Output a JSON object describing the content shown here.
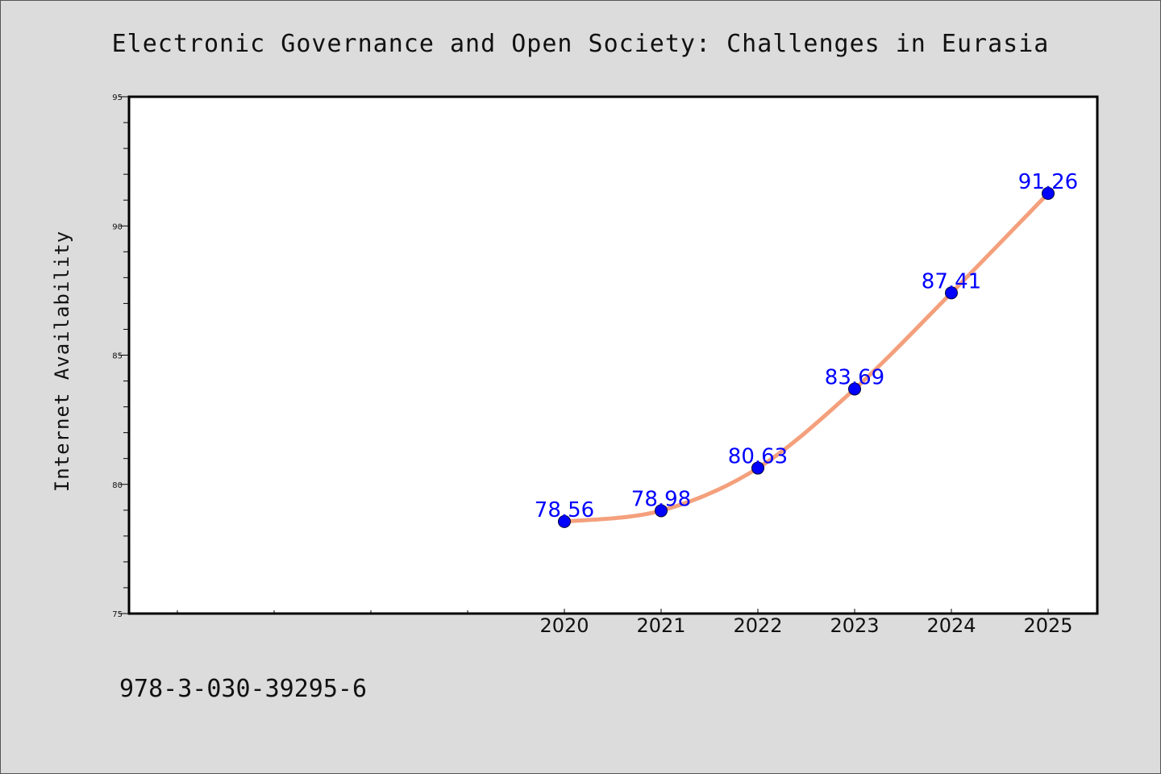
{
  "chart_data": {
    "type": "line",
    "title": "Electronic Governance and Open Society: Challenges in Eurasia",
    "xlabel": "",
    "ylabel": "Internet Availability",
    "categories": [
      "2020",
      "2021",
      "2022",
      "2023",
      "2024",
      "2025"
    ],
    "series": [
      {
        "values": [
          78.56,
          78.98,
          80.63,
          83.69,
          87.41,
          91.26
        ]
      }
    ],
    "data_labels": [
      "78.56",
      "78.98",
      "80.63",
      "83.69",
      "87.41",
      "91.26"
    ],
    "ylim": [
      75,
      95
    ],
    "yticks": [
      "75",
      "80",
      "85",
      "90",
      "95"
    ],
    "grid": false,
    "legend": "none",
    "colors": {
      "line": "#f4a07c",
      "marker": "#0000ff",
      "data_label": "#0000ff",
      "background": "#dcdcdc",
      "plot_area": "#ffffff"
    }
  },
  "footer": {
    "isbn": "978-3-030-39295-6"
  }
}
